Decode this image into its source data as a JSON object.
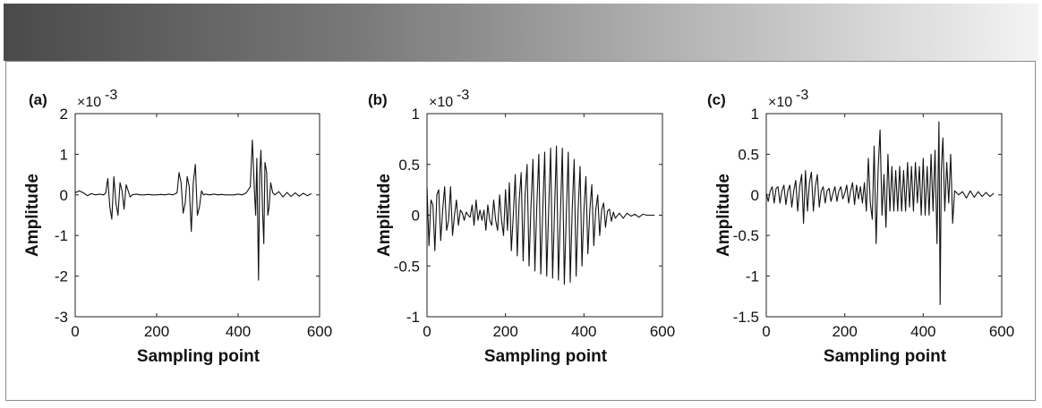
{
  "chart_data": [
    {
      "type": "line",
      "panel_label": "(a)",
      "exponent_label": "×10",
      "exponent_power": "-3",
      "xlabel": "Sampling point",
      "ylabel": "Amplitude",
      "xlim": [
        0,
        600
      ],
      "ylim": [
        -3,
        2
      ],
      "xticks": [
        0,
        200,
        400,
        600
      ],
      "yticks": [
        2,
        1,
        0,
        -1,
        -2,
        -3
      ],
      "xtick_labels": [
        "0",
        "200",
        "400",
        "600"
      ],
      "ytick_labels": [
        "2",
        "1",
        "0",
        "-1",
        "-2",
        "-3"
      ],
      "grid": false,
      "series": [
        {
          "x": [
            0,
            10,
            20,
            30,
            40,
            50,
            60,
            70,
            75,
            80,
            85,
            90,
            95,
            100,
            105,
            110,
            115,
            120,
            125,
            130,
            135,
            140,
            150,
            160,
            170,
            180,
            190,
            200,
            210,
            220,
            230,
            240,
            250,
            255,
            260,
            265,
            270,
            275,
            280,
            285,
            290,
            295,
            300,
            305,
            310,
            315,
            320,
            330,
            340,
            350,
            360,
            370,
            380,
            390,
            400,
            410,
            420,
            430,
            435,
            440,
            443,
            446,
            450,
            453,
            456,
            460,
            463,
            466,
            470,
            473,
            476,
            480,
            485,
            490,
            500,
            510,
            520,
            530,
            540,
            550,
            560,
            570,
            580
          ],
          "y": [
            0.05,
            0.1,
            0.05,
            -0.02,
            0.03,
            0.0,
            0.02,
            0.0,
            0.05,
            0.4,
            -0.3,
            -0.6,
            0.45,
            -0.2,
            -0.5,
            0.3,
            0.1,
            -0.35,
            0.25,
            0.1,
            -0.05,
            0.0,
            0.02,
            0.0,
            0.0,
            0.01,
            0.0,
            0.0,
            0.01,
            0.0,
            0.02,
            0.0,
            0.05,
            0.55,
            0.3,
            -0.45,
            -0.2,
            0.45,
            0.2,
            -0.9,
            0.3,
            0.75,
            -0.5,
            -0.3,
            0.1,
            0.0,
            0.02,
            0.0,
            0.02,
            0.0,
            0.01,
            0.0,
            0.0,
            0.0,
            0.02,
            0.0,
            0.05,
            0.2,
            1.35,
            0.1,
            -0.5,
            0.9,
            -2.1,
            0.5,
            1.1,
            -0.4,
            -1.2,
            0.8,
            0.55,
            -0.5,
            -0.3,
            0.3,
            0.05,
            0.0,
            0.08,
            -0.05,
            0.06,
            -0.04,
            0.05,
            -0.03,
            0.04,
            -0.02,
            0.03
          ]
        }
      ]
    },
    {
      "type": "line",
      "panel_label": "(b)",
      "exponent_label": "×10",
      "exponent_power": "-3",
      "xlabel": "Sampling point",
      "ylabel": "Amplitude",
      "xlim": [
        0,
        600
      ],
      "ylim": [
        -1,
        1
      ],
      "xticks": [
        0,
        200,
        400,
        600
      ],
      "yticks": [
        1,
        0.5,
        0,
        -0.5,
        -1
      ],
      "xtick_labels": [
        "0",
        "200",
        "400",
        "600"
      ],
      "ytick_labels": [
        "1",
        "0.5",
        "0",
        "-0.5",
        "-1"
      ],
      "grid": false,
      "series": [
        {
          "x": [
            0,
            5,
            10,
            15,
            20,
            25,
            30,
            35,
            40,
            45,
            50,
            55,
            60,
            65,
            70,
            75,
            80,
            85,
            90,
            95,
            100,
            105,
            110,
            115,
            120,
            125,
            130,
            135,
            140,
            145,
            150,
            155,
            160,
            165,
            170,
            175,
            180,
            185,
            190,
            195,
            200,
            205,
            210,
            215,
            220,
            225,
            230,
            235,
            240,
            245,
            250,
            255,
            260,
            265,
            270,
            275,
            280,
            285,
            290,
            295,
            300,
            305,
            310,
            315,
            320,
            325,
            330,
            335,
            340,
            345,
            350,
            355,
            360,
            365,
            370,
            375,
            380,
            385,
            390,
            395,
            400,
            405,
            410,
            415,
            420,
            425,
            430,
            435,
            440,
            445,
            450,
            455,
            460,
            465,
            470,
            475,
            480,
            490,
            500,
            510,
            520,
            530,
            540,
            550,
            560,
            570,
            580
          ],
          "y": [
            0.28,
            -0.3,
            0.15,
            0.1,
            -0.35,
            0.2,
            0.25,
            -0.25,
            0.05,
            0.28,
            -0.15,
            -0.05,
            0.28,
            -0.2,
            0.0,
            0.15,
            -0.1,
            0.05,
            0.02,
            -0.05,
            0.03,
            0.0,
            -0.02,
            0.1,
            -0.1,
            0.15,
            -0.05,
            0.05,
            -0.05,
            0.05,
            -0.15,
            0.1,
            -0.05,
            -0.1,
            0.15,
            -0.05,
            -0.15,
            0.2,
            -0.05,
            -0.2,
            0.25,
            -0.15,
            0.32,
            -0.35,
            0.0,
            0.4,
            -0.4,
            0.15,
            0.42,
            -0.45,
            0.2,
            0.5,
            -0.5,
            0.1,
            0.55,
            -0.55,
            0.1,
            0.6,
            -0.58,
            0.05,
            0.62,
            -0.6,
            0.05,
            0.66,
            -0.62,
            0.05,
            0.68,
            -0.64,
            0.0,
            0.66,
            -0.68,
            0.0,
            0.62,
            -0.66,
            0.05,
            0.55,
            -0.6,
            0.05,
            0.48,
            -0.5,
            0.05,
            0.38,
            -0.38,
            0.05,
            0.3,
            -0.3,
            0.05,
            0.2,
            -0.2,
            0.05,
            0.12,
            -0.12,
            0.04,
            0.06,
            -0.06,
            0.03,
            -0.03,
            0.02,
            -0.03,
            0.02,
            -0.01,
            0.01,
            -0.02,
            0.01,
            0.0,
            0.0,
            0.0
          ]
        }
      ]
    },
    {
      "type": "line",
      "panel_label": "(c)",
      "exponent_label": "×10",
      "exponent_power": "-3",
      "xlabel": "Sampling point",
      "ylabel": "Amplitude",
      "xlim": [
        0,
        600
      ],
      "ylim": [
        -1.5,
        1
      ],
      "xticks": [
        0,
        200,
        400,
        600
      ],
      "yticks": [
        1,
        0.5,
        0,
        -0.5,
        -1,
        -1.5
      ],
      "xtick_labels": [
        "0",
        "200",
        "400",
        "600"
      ],
      "ytick_labels": [
        "1",
        "0.5",
        "0",
        "-0.5",
        "-1",
        "-1.5"
      ],
      "grid": false,
      "series": [
        {
          "x": [
            0,
            5,
            10,
            15,
            20,
            25,
            30,
            35,
            40,
            45,
            50,
            55,
            60,
            65,
            70,
            75,
            80,
            85,
            90,
            95,
            100,
            105,
            110,
            115,
            120,
            125,
            130,
            135,
            140,
            145,
            150,
            155,
            160,
            165,
            170,
            175,
            180,
            185,
            190,
            195,
            200,
            205,
            210,
            215,
            220,
            225,
            230,
            235,
            240,
            245,
            250,
            255,
            260,
            265,
            270,
            275,
            280,
            285,
            290,
            295,
            300,
            305,
            310,
            315,
            320,
            325,
            330,
            335,
            340,
            345,
            350,
            355,
            360,
            365,
            370,
            375,
            380,
            385,
            390,
            395,
            400,
            405,
            410,
            415,
            420,
            425,
            430,
            435,
            440,
            443,
            446,
            450,
            455,
            460,
            465,
            470,
            475,
            480,
            490,
            500,
            510,
            520,
            530,
            540,
            550,
            560,
            570,
            580
          ],
          "y": [
            0.02,
            -0.08,
            0.05,
            0.1,
            -0.1,
            0.08,
            0.1,
            -0.1,
            0.05,
            0.12,
            -0.12,
            0.05,
            0.12,
            -0.15,
            0.05,
            0.18,
            -0.2,
            0.1,
            0.25,
            -0.35,
            0.3,
            -0.2,
            0.15,
            0.28,
            -0.2,
            0.1,
            0.25,
            -0.15,
            0.05,
            0.1,
            -0.1,
            0.05,
            0.08,
            -0.08,
            0.02,
            0.1,
            -0.08,
            0.05,
            0.1,
            -0.05,
            0.02,
            0.12,
            -0.1,
            0.05,
            0.15,
            -0.12,
            0.12,
            -0.05,
            0.1,
            -0.1,
            0.15,
            -0.2,
            0.45,
            -0.1,
            -0.3,
            0.6,
            -0.6,
            0.3,
            0.8,
            -0.25,
            0.25,
            -0.4,
            0.5,
            -0.2,
            0.35,
            -0.2,
            0.3,
            -0.2,
            0.35,
            -0.2,
            0.3,
            -0.2,
            0.4,
            -0.15,
            0.35,
            -0.2,
            0.4,
            -0.1,
            0.35,
            -0.25,
            0.45,
            -0.25,
            0.35,
            -0.25,
            0.5,
            -0.2,
            0.55,
            -0.6,
            0.9,
            -1.35,
            0.3,
            0.7,
            -0.2,
            0.4,
            -0.1,
            0.5,
            -0.35,
            0.05,
            0.0,
            0.04,
            -0.04,
            0.05,
            -0.03,
            0.04,
            -0.02,
            0.03,
            -0.02,
            0.02
          ]
        }
      ]
    }
  ]
}
